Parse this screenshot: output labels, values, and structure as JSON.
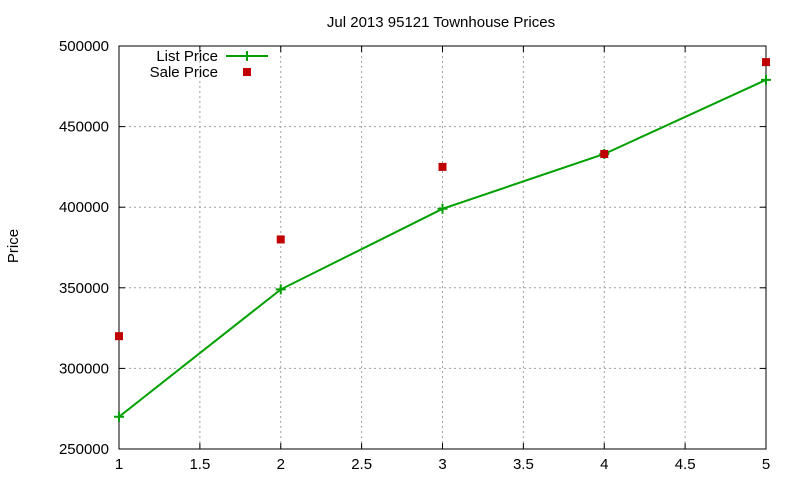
{
  "chart_data": {
    "type": "line",
    "title": "Jul 2013 95121 Townhouse Prices",
    "xlabel": "",
    "ylabel": "Price",
    "xlim": [
      1,
      5
    ],
    "ylim": [
      250000,
      500000
    ],
    "xticks": [
      "1",
      "1.5",
      "2",
      "2.5",
      "3",
      "3.5",
      "4",
      "4.5",
      "5"
    ],
    "yticks": [
      "250000",
      "300000",
      "350000",
      "400000",
      "450000",
      "500000"
    ],
    "grid": true,
    "legend_position": "top-left",
    "series": [
      {
        "name": "List Price",
        "style": "line-with-plus-markers",
        "color": "#00a000",
        "x": [
          1,
          2,
          3,
          4,
          5
        ],
        "values": [
          270000,
          349000,
          399000,
          433000,
          479000
        ]
      },
      {
        "name": "Sale Price",
        "style": "square-markers",
        "color": "#c00000",
        "x": [
          1,
          2,
          3,
          4,
          5
        ],
        "values": [
          320000,
          380000,
          425000,
          433000,
          490000
        ]
      }
    ]
  }
}
